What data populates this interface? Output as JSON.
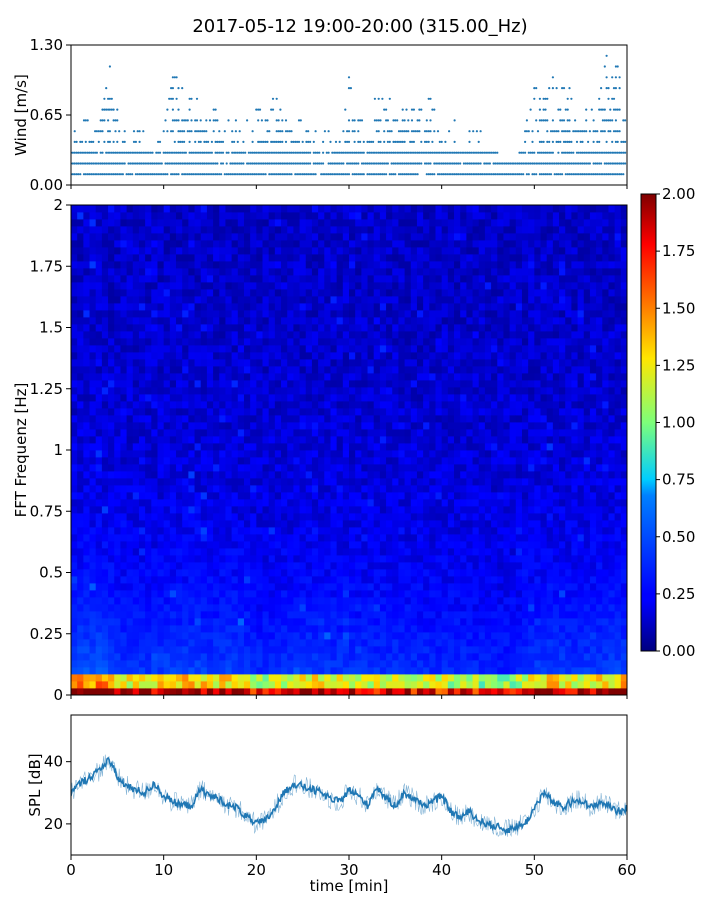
{
  "figure": {
    "title": "2017-05-12 19:00-20:00 (315.00_Hz)"
  },
  "chart_data": [
    {
      "type": "scatter",
      "name": "wind",
      "ylabel": "Wind [m/s]",
      "xlim": [
        0,
        60
      ],
      "ylim": [
        0,
        1.3
      ],
      "y_ticks": [
        0.0,
        0.65,
        1.3
      ],
      "y_tick_labels": [
        "0.00",
        "0.65",
        "1.30"
      ],
      "levels": [
        0.1,
        0.2,
        0.3,
        0.4,
        0.5,
        0.6,
        0.7,
        0.8,
        0.9,
        1.0,
        1.1,
        1.2,
        1.3
      ],
      "envelope_minutes": [
        0,
        2,
        3,
        4,
        5,
        6,
        8,
        10,
        11,
        12,
        13,
        14,
        15,
        16,
        18,
        19,
        20,
        21,
        22,
        23,
        25,
        27,
        29,
        30,
        31,
        32,
        33,
        34,
        35,
        36,
        38,
        39,
        40,
        42,
        43,
        44,
        46,
        48,
        50,
        51,
        52,
        54,
        55,
        56,
        57,
        58,
        60
      ],
      "envelope_max": [
        0.6,
        0.6,
        0.8,
        1.2,
        0.8,
        0.6,
        0.5,
        0.6,
        1.0,
        1.0,
        0.9,
        0.8,
        0.9,
        0.6,
        0.6,
        0.6,
        0.7,
        0.7,
        0.9,
        0.8,
        0.6,
        0.5,
        0.6,
        1.0,
        0.6,
        0.7,
        0.9,
        0.8,
        0.9,
        0.7,
        0.8,
        0.8,
        0.6,
        0.6,
        0.5,
        0.6,
        0.3,
        0.2,
        0.9,
        0.9,
        1.0,
        0.9,
        0.8,
        0.7,
        0.8,
        1.3,
        0.9
      ],
      "color": "#1f77b4"
    },
    {
      "type": "heatmap",
      "name": "spectrogram",
      "ylabel": "FFT Frequenz [Hz]",
      "xlim": [
        0,
        60
      ],
      "ylim": [
        0,
        2
      ],
      "y_ticks": [
        0,
        0.25,
        0.5,
        0.75,
        1,
        1.25,
        1.5,
        1.75,
        2
      ],
      "y_tick_labels": [
        "0",
        "0.25",
        "0.5",
        "0.75",
        "1",
        "1.25",
        "1.5",
        "1.75",
        "2"
      ],
      "colormap": "jet",
      "clim": [
        0,
        2
      ],
      "colorbar_ticks": [
        0.0,
        0.25,
        0.5,
        0.75,
        1.0,
        1.25,
        1.5,
        1.75,
        2.0
      ],
      "colorbar_tick_labels": [
        "0.00",
        "0.25",
        "0.50",
        "0.75",
        "1.00",
        "1.25",
        "1.50",
        "1.75",
        "2.00"
      ],
      "activity_minutes": [
        0,
        2,
        4,
        5,
        6,
        8,
        10,
        12,
        14,
        16,
        18,
        19,
        20,
        22,
        24,
        26,
        28,
        30,
        32,
        34,
        36,
        38,
        40,
        42,
        44,
        46,
        48,
        50,
        52,
        54,
        56,
        58,
        60
      ],
      "activity": [
        0.9,
        0.95,
        1.0,
        0.7,
        0.55,
        0.6,
        0.7,
        0.75,
        0.7,
        0.65,
        0.75,
        0.65,
        0.45,
        0.5,
        0.6,
        0.65,
        0.6,
        0.55,
        0.55,
        0.55,
        0.5,
        0.5,
        0.45,
        0.5,
        0.4,
        0.35,
        0.35,
        0.65,
        0.7,
        0.6,
        0.65,
        0.75,
        0.75
      ]
    },
    {
      "type": "line",
      "name": "spl",
      "ylabel": "SPL [dB]",
      "xlabel": "time [min]",
      "xlim": [
        0,
        60
      ],
      "ylim": [
        10,
        55
      ],
      "y_ticks": [
        20,
        40
      ],
      "y_tick_labels": [
        "20",
        "40"
      ],
      "x_ticks": [
        0,
        10,
        20,
        30,
        40,
        50,
        60
      ],
      "x_tick_labels": [
        "0",
        "10",
        "20",
        "30",
        "40",
        "50",
        "60"
      ],
      "x": [
        0,
        1,
        2,
        3,
        4,
        5,
        6,
        7,
        8,
        9,
        10,
        11,
        12,
        13,
        14,
        15,
        16,
        17,
        18,
        19,
        20,
        21,
        22,
        23,
        24,
        25,
        26,
        27,
        28,
        29,
        30,
        31,
        32,
        33,
        34,
        35,
        36,
        37,
        38,
        39,
        40,
        41,
        42,
        43,
        44,
        45,
        46,
        47,
        48,
        49,
        50,
        51,
        52,
        53,
        54,
        55,
        56,
        57,
        58,
        59,
        60
      ],
      "y": [
        30,
        33,
        35,
        37,
        41,
        35,
        32,
        31,
        30,
        33,
        29,
        27,
        26,
        26,
        31,
        29,
        28,
        26,
        25,
        22,
        20,
        21,
        25,
        30,
        33,
        32,
        31,
        30,
        28,
        27,
        31,
        29,
        26,
        32,
        28,
        26,
        30,
        28,
        26,
        27,
        29,
        24,
        22,
        24,
        21,
        20,
        19,
        18,
        19,
        20,
        25,
        30,
        27,
        25,
        27,
        28,
        25,
        27,
        26,
        24,
        25
      ],
      "color": "#1f77b4"
    }
  ]
}
